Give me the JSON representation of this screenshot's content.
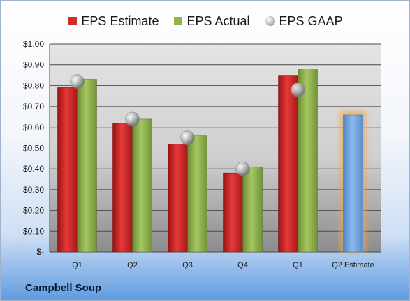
{
  "chart_data": {
    "type": "bar",
    "categories": [
      "Q1",
      "Q2",
      "Q3",
      "Q4",
      "Q1",
      "Q2 Estimate"
    ],
    "series": [
      {
        "name": "EPS Estimate",
        "values": [
          0.79,
          0.62,
          0.52,
          0.38,
          0.85,
          null
        ],
        "color": "#d42a2a"
      },
      {
        "name": "EPS Actual",
        "values": [
          0.83,
          0.64,
          0.56,
          0.41,
          0.88,
          null
        ],
        "color": "#8fb44d"
      },
      {
        "name": "EPS GAAP",
        "values": [
          0.82,
          0.64,
          0.55,
          0.4,
          0.78,
          null
        ],
        "marker": "circle"
      }
    ],
    "next_estimate": {
      "category": "Q2 Estimate",
      "value": 0.66,
      "color": "#6fa3dd",
      "glow": "#f2a64a"
    },
    "ylim": [
      0,
      1.0
    ],
    "y_ticks": [
      {
        "value": 1.0,
        "label": "$1.00"
      },
      {
        "value": 0.9,
        "label": "$0.90"
      },
      {
        "value": 0.8,
        "label": "$0.80"
      },
      {
        "value": 0.7,
        "label": "$0.70"
      },
      {
        "value": 0.6,
        "label": "$0.60"
      },
      {
        "value": 0.5,
        "label": "$0.50"
      },
      {
        "value": 0.4,
        "label": "$0.40"
      },
      {
        "value": 0.3,
        "label": "$0.30"
      },
      {
        "value": 0.2,
        "label": "$0.20"
      },
      {
        "value": 0.1,
        "label": "$0.10"
      },
      {
        "value": 0.0,
        "label": "$-"
      }
    ],
    "grid": true,
    "legend_position": "top",
    "title": "",
    "xlabel": "",
    "ylabel": ""
  },
  "legend": {
    "estimate_label": "EPS Estimate",
    "actual_label": "EPS Actual",
    "gaap_label": "EPS GAAP"
  },
  "company_name": "Campbell Soup"
}
